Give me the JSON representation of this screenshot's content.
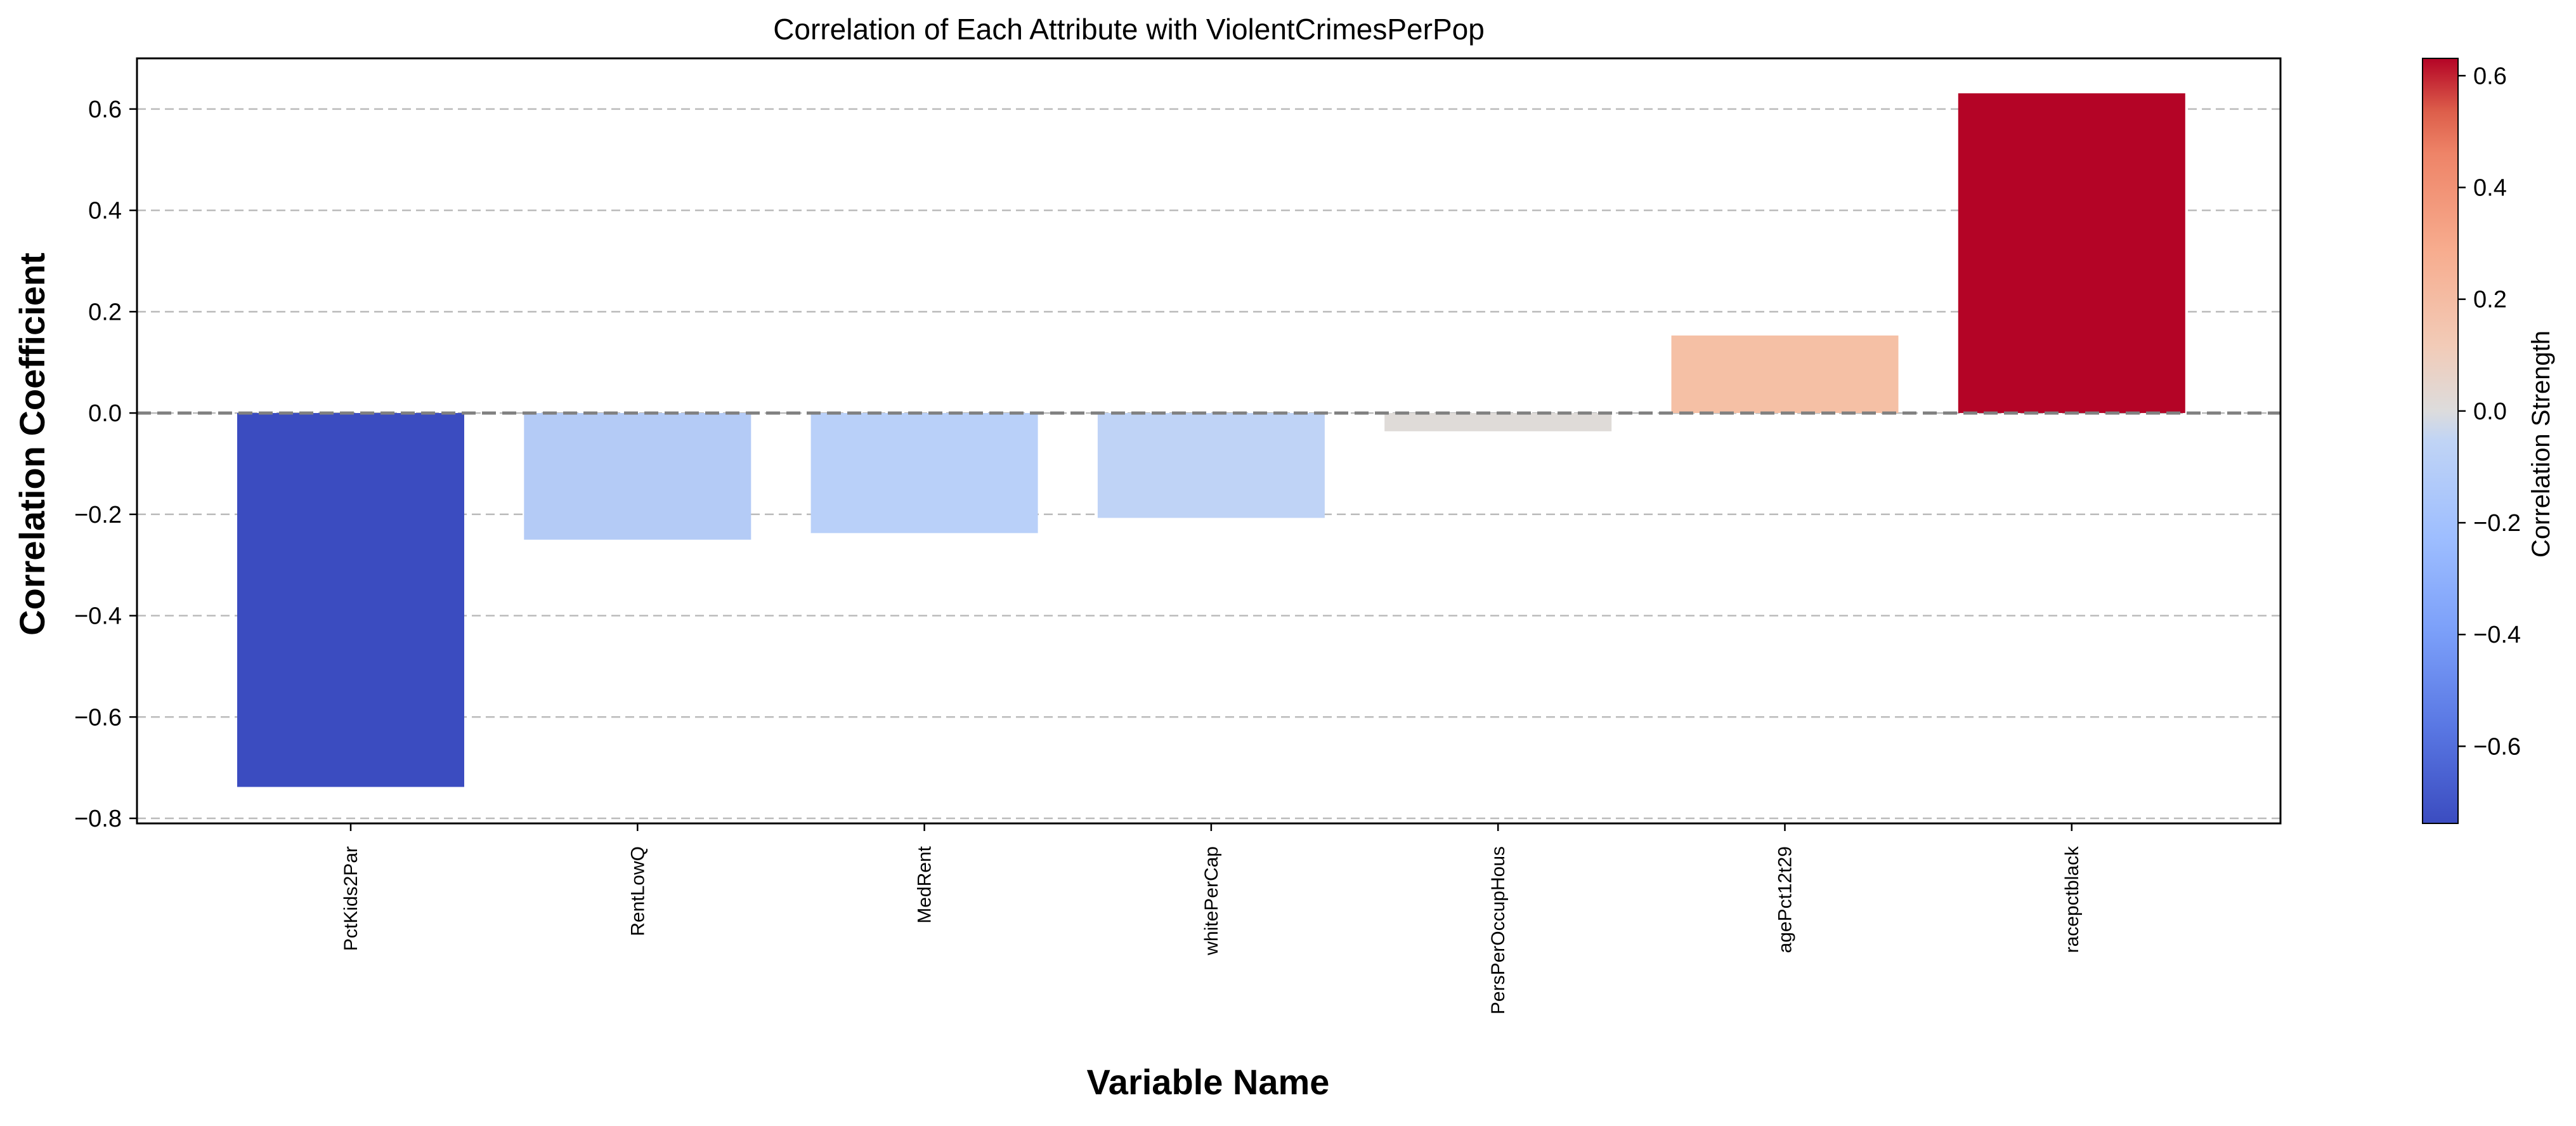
{
  "chart_data": {
    "type": "bar",
    "title": "Correlation of Each Attribute with ViolentCrimesPerPop",
    "xlabel": "Variable Name",
    "ylabel": "Correlation Coefficient",
    "categories": [
      "PctKids2Par",
      "RentLowQ",
      "MedRent",
      "whitePerCap",
      "PersPerOccupHous",
      "agePct12t29",
      "racepctblack"
    ],
    "values": [
      -0.738,
      -0.25,
      -0.237,
      -0.207,
      -0.036,
      0.153,
      0.631
    ],
    "ylim": [
      -0.81,
      0.7
    ],
    "yticks": [
      -0.8,
      -0.6,
      -0.4,
      -0.2,
      0.0,
      0.2,
      0.4,
      0.6
    ],
    "ytick_labels": [
      "−0.8",
      "−0.6",
      "−0.4",
      "−0.2",
      "0.0",
      "0.2",
      "0.4",
      "0.6"
    ],
    "grid": "y-dashed",
    "zero_line": "dashed-gray",
    "colormap": "coolwarm",
    "colorbar": {
      "label": "Correlation Strength",
      "range": [
        -0.738,
        0.631
      ],
      "ticks": [
        -0.6,
        -0.4,
        -0.2,
        0.0,
        0.2,
        0.4,
        0.6
      ],
      "tick_labels": [
        "−0.6",
        "−0.4",
        "−0.2",
        "0.0",
        "0.2",
        "0.4",
        "0.6"
      ]
    },
    "colors": {
      "PctKids2Par": "#3b4cc0",
      "RentLowQ": "#b4cbf6",
      "MedRent": "#b9d0f9",
      "whitePerCap": "#bfd3f6",
      "PersPerOccupHous": "#dfdbd8",
      "agePct12t29": "#f5c0a5",
      "racepctblack": "#b40426"
    }
  }
}
